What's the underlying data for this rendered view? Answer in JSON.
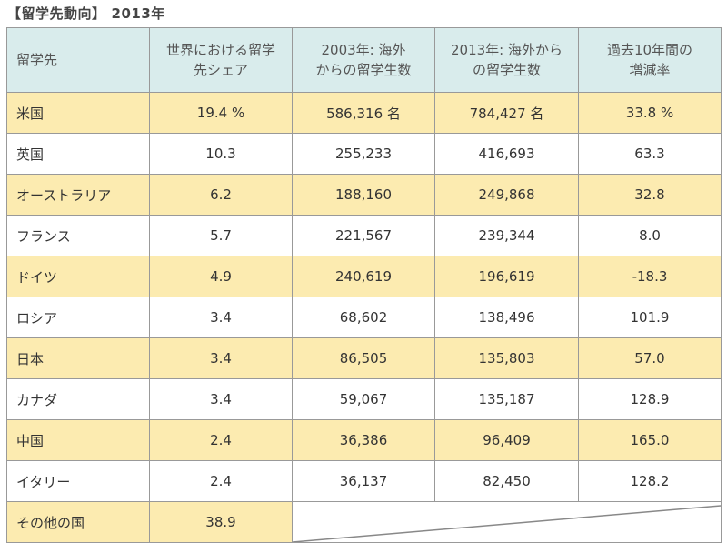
{
  "title": "【留学先動向】",
  "year": "2013年",
  "headers": [
    [
      "留学先"
    ],
    [
      "世界における留学",
      "先シェア"
    ],
    [
      "2003年: 海外",
      "からの留学生数"
    ],
    [
      "2013年: 海外から",
      "の留学生数"
    ],
    [
      "過去10年間の",
      "増減率"
    ]
  ],
  "rows": [
    {
      "name": "米国",
      "share": "19.4 %",
      "y2003": "586,316 名",
      "y2013": "784,427 名",
      "rate": "33.8 %",
      "highlight": true
    },
    {
      "name": "英国",
      "share": "10.3",
      "y2003": "255,233",
      "y2013": "416,693",
      "rate": "63.3",
      "highlight": false
    },
    {
      "name": "オーストラリア",
      "share": "6.2",
      "y2003": "188,160",
      "y2013": "249,868",
      "rate": "32.8",
      "highlight": true
    },
    {
      "name": "フランス",
      "share": "5.7",
      "y2003": "221,567",
      "y2013": "239,344",
      "rate": "8.0",
      "highlight": false
    },
    {
      "name": "ドイツ",
      "share": "4.9",
      "y2003": "240,619",
      "y2013": "196,619",
      "rate": "-18.3",
      "highlight": true
    },
    {
      "name": "ロシア",
      "share": "3.4",
      "y2003": "68,602",
      "y2013": "138,496",
      "rate": "101.9",
      "highlight": false
    },
    {
      "name": "日本",
      "share": "3.4",
      "y2003": "86,505",
      "y2013": "135,803",
      "rate": "57.0",
      "highlight": true
    },
    {
      "name": "カナダ",
      "share": "3.4",
      "y2003": "59,067",
      "y2013": "135,187",
      "rate": "128.9",
      "highlight": false
    },
    {
      "name": "中国",
      "share": "2.4",
      "y2003": "36,386",
      "y2013": "96,409",
      "rate": "165.0",
      "highlight": true
    },
    {
      "name": "イタリー",
      "share": "2.4",
      "y2003": "36,137",
      "y2013": "82,450",
      "rate": "128.2",
      "highlight": false
    }
  ],
  "other": {
    "name": "その他の国",
    "share": "38.9"
  },
  "colors": {
    "highlight": "#fcebb0",
    "header": "#d9ecec",
    "border": "#999999"
  }
}
